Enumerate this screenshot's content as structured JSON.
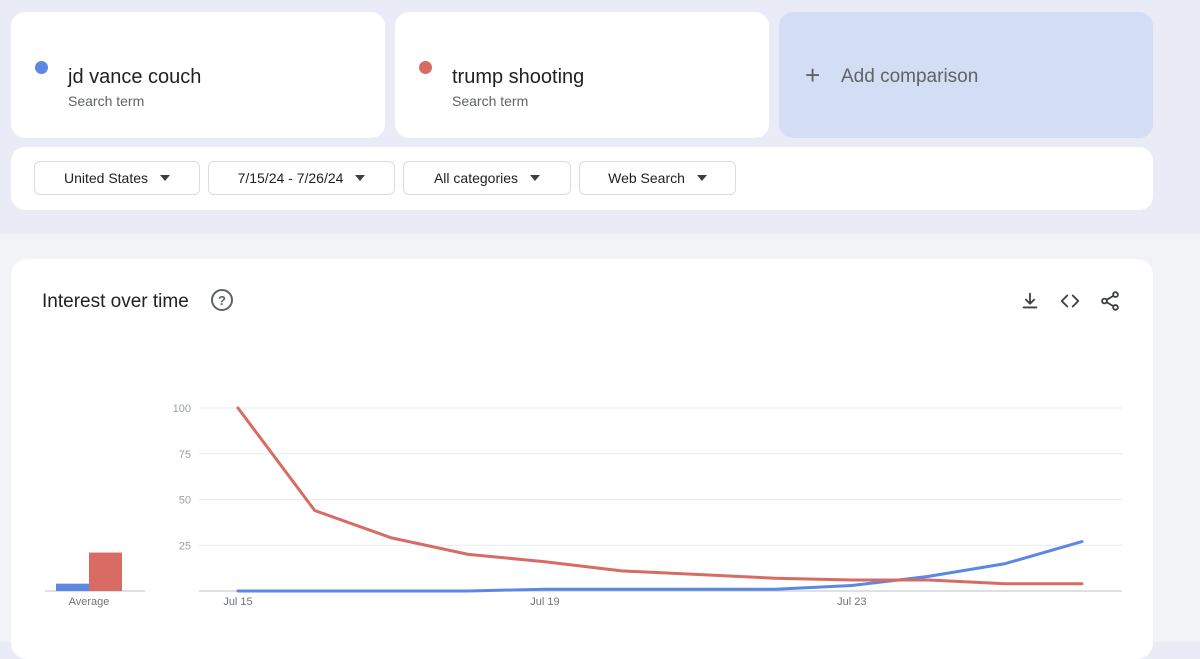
{
  "terms": [
    {
      "name": "jd vance couch",
      "subtitle": "Search term",
      "color": "#5c87e5"
    },
    {
      "name": "trump shooting",
      "subtitle": "Search term",
      "color": "#d86b63"
    }
  ],
  "add_comparison": {
    "icon": "plus-icon",
    "label": "Add comparison"
  },
  "filters": {
    "region": "United States",
    "date_range": "7/15/24 - 7/26/24",
    "category": "All categories",
    "search_type": "Web Search"
  },
  "section": {
    "title": "Interest over time",
    "icons": [
      "help-icon",
      "download-icon",
      "embed-icon",
      "share-icon"
    ]
  },
  "chart_data": {
    "type": "line",
    "x": [
      "Jul 15",
      "Jul 16",
      "Jul 17",
      "Jul 18",
      "Jul 19",
      "Jul 20",
      "Jul 21",
      "Jul 22",
      "Jul 23",
      "Jul 24",
      "Jul 25",
      "Jul 26"
    ],
    "x_tick_labels": [
      "Jul 15",
      "Jul 19",
      "Jul 23"
    ],
    "y_ticks": [
      "100",
      "75",
      "50",
      "25"
    ],
    "ylim": [
      0,
      100
    ],
    "grid": true,
    "series": [
      {
        "name": "jd vance couch",
        "color": "#5c87e5",
        "values": [
          0,
          0,
          0,
          0,
          1,
          1,
          1,
          1,
          3,
          8,
          15,
          27
        ]
      },
      {
        "name": "trump shooting",
        "color": "#d86b63",
        "values": [
          100,
          44,
          29,
          20,
          16,
          11,
          9,
          7,
          6,
          6,
          4,
          4
        ]
      }
    ],
    "average": {
      "label": "Average",
      "values": [
        {
          "name": "jd vance couch",
          "value": 4,
          "color": "#5c87e5"
        },
        {
          "name": "trump shooting",
          "value": 21,
          "color": "#d86b63"
        }
      ]
    }
  }
}
